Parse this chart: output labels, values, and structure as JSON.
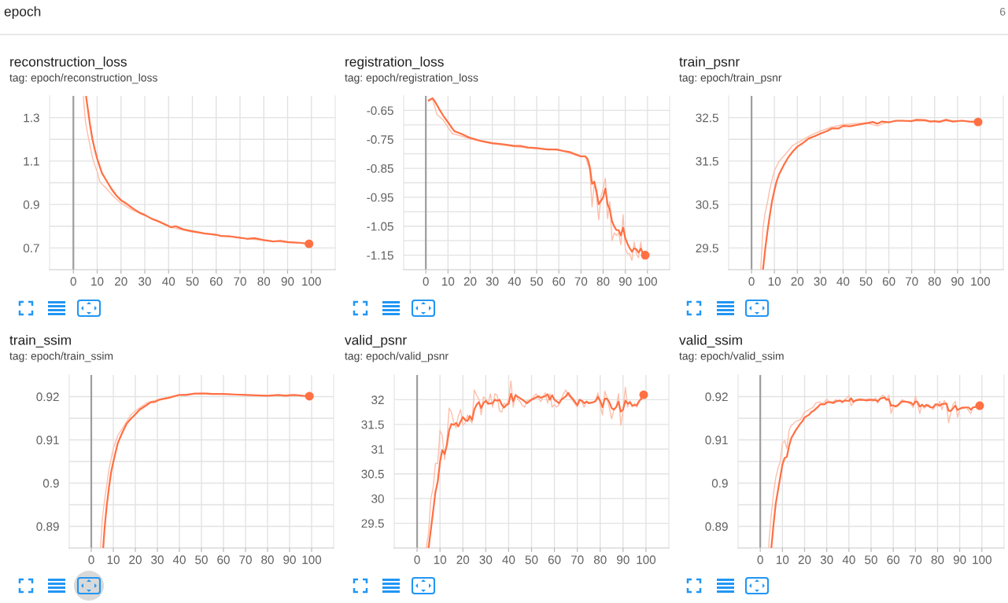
{
  "chart_data": [
    {
      "type": "line",
      "title": "reconstruction_loss",
      "subtitle": "tag: epoch/reconstruction_loss",
      "annotations": [
        "epoch",
        "6"
      ],
      "xlim": [
        -10,
        110
      ],
      "xticks": [
        0,
        10,
        20,
        30,
        40,
        50,
        60,
        70,
        80,
        90,
        100
      ],
      "ylim": [
        0.6,
        1.4
      ],
      "yticks": [
        0.7,
        {
          "value": 0.8,
          "label": null
        },
        0.9,
        {
          "value": 1.0,
          "label": null
        },
        1.1,
        {
          "value": 1.2,
          "label": null
        },
        1.3
      ],
      "grid": true,
      "ref_lines": [
        {
          "axis": "x",
          "value": 0,
          "color": "#9e9e9e"
        }
      ],
      "series": [
        {
          "color": "#fcbfac",
          "x": [
            4.2,
            5,
            6,
            7,
            8,
            9,
            10,
            11,
            12,
            13,
            15,
            17,
            20,
            25,
            30,
            40,
            50,
            60,
            70,
            80,
            90,
            99
          ],
          "values": [
            1.4,
            1.286,
            1.225,
            1.171,
            1.117,
            1.081,
            1.051,
            1.008,
            0.994,
            0.984,
            0.96,
            0.936,
            0.906,
            0.873,
            0.849,
            0.798,
            0.773,
            0.759,
            0.746,
            0.735,
            0.725,
            0.72
          ]
        },
        {
          "color": "#ff7043",
          "x": [
            5.3,
            6,
            7,
            8,
            9,
            10,
            12,
            14,
            16,
            18,
            20,
            22,
            25,
            28,
            30,
            33,
            36,
            40,
            41,
            43,
            46,
            50,
            55,
            60,
            62,
            66,
            70,
            73,
            76,
            80,
            84,
            87,
            90,
            95,
            99
          ],
          "values": [
            1.4,
            1.346,
            1.267,
            1.201,
            1.153,
            1.111,
            1.045,
            1.008,
            0.972,
            0.942,
            0.92,
            0.906,
            0.882,
            0.861,
            0.852,
            0.834,
            0.822,
            0.801,
            0.795,
            0.8,
            0.786,
            0.777,
            0.767,
            0.761,
            0.755,
            0.753,
            0.747,
            0.742,
            0.745,
            0.736,
            0.73,
            0.733,
            0.727,
            0.724,
            0.719
          ]
        },
        {
          "type": "scatter",
          "marker": "circle",
          "color": "#ff7043",
          "x": [
            99
          ],
          "values": [
            0.719
          ]
        }
      ]
    },
    {
      "type": "line",
      "title": "registration_loss",
      "subtitle": "tag: epoch/registration_loss",
      "xlim": [
        -10,
        110
      ],
      "xticks": [
        0,
        10,
        20,
        30,
        40,
        50,
        60,
        70,
        80,
        90,
        100
      ],
      "ylim": [
        -1.2,
        -0.6
      ],
      "yticks": [
        -1.15,
        {
          "value": -1.1,
          "label": null
        },
        -1.05,
        {
          "value": -1.0,
          "label": null
        },
        -0.95,
        {
          "value": -0.9,
          "label": null
        },
        -0.85,
        {
          "value": -0.8,
          "label": null
        },
        -0.75,
        {
          "value": -0.7,
          "label": null
        },
        -0.65
      ],
      "grid": true,
      "ref_lines": [
        {
          "axis": "x",
          "value": 0,
          "color": "#9e9e9e"
        }
      ],
      "series": [
        {
          "color": "#fcbfac",
          "x": [
            1,
            3,
            5,
            8,
            12,
            13,
            20,
            30,
            40,
            50,
            60,
            70,
            72,
            74,
            75,
            76,
            77,
            78,
            79,
            80,
            81,
            82,
            83,
            84,
            85,
            86,
            87,
            88,
            89,
            90,
            91,
            92,
            93,
            94,
            95,
            96,
            97,
            98,
            99
          ],
          "values": [
            -0.62,
            -0.61,
            -0.664,
            -0.685,
            -0.731,
            -0.732,
            -0.748,
            -0.765,
            -0.775,
            -0.782,
            -0.787,
            -0.81,
            -0.81,
            -0.857,
            -0.983,
            -0.902,
            -0.947,
            -1.028,
            -0.947,
            -0.92,
            -0.884,
            -1.024,
            -0.965,
            -1.1,
            -1.073,
            -1.082,
            -1.073,
            -1.114,
            -1.01,
            -1.127,
            -1.145,
            -1.145,
            -1.168,
            -1.105,
            -1.145,
            -1.159,
            -1.105,
            -1.164,
            -1.159
          ]
        },
        {
          "color": "#ff7043",
          "x": [
            1,
            2,
            3,
            4,
            6,
            8,
            10,
            12,
            13,
            16,
            20,
            25,
            30,
            35,
            40,
            43,
            46,
            50,
            55,
            59,
            62,
            65,
            68,
            70,
            72,
            73,
            74,
            75,
            76,
            77,
            78,
            79,
            80,
            81,
            82,
            83,
            84,
            85,
            86,
            87,
            88,
            89,
            90,
            91,
            92,
            93,
            94,
            95,
            96,
            97,
            98,
            99
          ],
          "values": [
            -0.617,
            -0.612,
            -0.608,
            -0.618,
            -0.645,
            -0.67,
            -0.691,
            -0.713,
            -0.722,
            -0.731,
            -0.745,
            -0.756,
            -0.763,
            -0.767,
            -0.773,
            -0.773,
            -0.778,
            -0.78,
            -0.785,
            -0.785,
            -0.79,
            -0.794,
            -0.803,
            -0.809,
            -0.809,
            -0.818,
            -0.846,
            -0.904,
            -0.896,
            -0.929,
            -0.974,
            -0.963,
            -0.95,
            -0.92,
            -0.974,
            -0.992,
            -1.033,
            -1.051,
            -1.063,
            -1.064,
            -1.082,
            -1.055,
            -1.091,
            -1.111,
            -1.126,
            -1.138,
            -1.126,
            -1.13,
            -1.141,
            -1.127,
            -1.145,
            -1.15
          ]
        },
        {
          "type": "scatter",
          "marker": "circle",
          "color": "#ff7043",
          "x": [
            99
          ],
          "values": [
            -1.15
          ]
        }
      ]
    },
    {
      "type": "line",
      "title": "train_psnr",
      "subtitle": "tag: epoch/train_psnr",
      "xlim": [
        -10,
        110
      ],
      "xticks": [
        0,
        10,
        20,
        30,
        40,
        50,
        60,
        70,
        80,
        90,
        100
      ],
      "ylim": [
        29,
        33
      ],
      "yticks": [
        29.5,
        {
          "value": 30,
          "label": null
        },
        30.5,
        {
          "value": 31,
          "label": null
        },
        31.5,
        {
          "value": 32,
          "label": null
        },
        32.5
      ],
      "grid": true,
      "ref_lines": [
        {
          "axis": "x",
          "value": 0,
          "color": "#9e9e9e"
        }
      ],
      "series": [
        {
          "color": "#fcbfac",
          "x": [
            4,
            5,
            6,
            7,
            8,
            10,
            12,
            15,
            18,
            20,
            25,
            30,
            35,
            40,
            50,
            55,
            60,
            70,
            80,
            90,
            99
          ],
          "values": [
            29.0,
            29.96,
            30.32,
            30.56,
            30.86,
            31.28,
            31.49,
            31.67,
            31.86,
            31.92,
            32.07,
            32.19,
            32.28,
            32.34,
            32.38,
            32.31,
            32.41,
            32.43,
            32.42,
            32.43,
            32.41
          ]
        },
        {
          "color": "#ff7043",
          "x": [
            5,
            6,
            7,
            8,
            9,
            10,
            11,
            12,
            14,
            16,
            18,
            20,
            22,
            25,
            28,
            30,
            33,
            35,
            38,
            40,
            43,
            46,
            50,
            53,
            55,
            57,
            60,
            63,
            66,
            70,
            72,
            76,
            78,
            80,
            82,
            85,
            88,
            92,
            95,
            99
          ],
          "values": [
            29.0,
            29.48,
            29.9,
            30.26,
            30.59,
            30.83,
            31.04,
            31.19,
            31.4,
            31.58,
            31.72,
            31.83,
            31.9,
            32.02,
            32.08,
            32.13,
            32.19,
            32.25,
            32.25,
            32.31,
            32.3,
            32.33,
            32.37,
            32.4,
            32.36,
            32.41,
            32.39,
            32.43,
            32.43,
            32.42,
            32.45,
            32.44,
            32.41,
            32.42,
            32.4,
            32.45,
            32.41,
            32.43,
            32.41,
            32.4
          ]
        },
        {
          "type": "scatter",
          "marker": "circle",
          "color": "#ff7043",
          "x": [
            99
          ],
          "values": [
            32.4
          ]
        }
      ]
    },
    {
      "type": "line",
      "title": "train_ssim",
      "subtitle": "tag: epoch/train_ssim",
      "xlim": [
        -10,
        110
      ],
      "xticks": [
        0,
        10,
        20,
        30,
        40,
        50,
        60,
        70,
        80,
        90,
        100
      ],
      "ylim": [
        0.885,
        0.925
      ],
      "yticks": [
        0.89,
        {
          "value": 0.895,
          "label": null
        },
        0.9,
        {
          "value": 0.905,
          "label": null
        },
        0.91,
        {
          "value": 0.915,
          "label": null
        },
        0.92
      ],
      "grid": true,
      "ref_lines": [
        {
          "axis": "x",
          "value": 0,
          "color": "#9e9e9e"
        }
      ],
      "series": [
        {
          "color": "#fcbfac",
          "x": [
            4.2,
            5,
            6,
            7,
            8,
            10,
            12,
            15,
            18,
            20,
            25,
            30,
            40,
            50,
            60,
            70,
            80,
            90,
            99
          ],
          "values": [
            0.885,
            0.8917,
            0.8959,
            0.8995,
            0.9031,
            0.908,
            0.911,
            0.9134,
            0.9158,
            0.9167,
            0.9185,
            0.9193,
            0.9204,
            0.9208,
            0.9206,
            0.9204,
            0.9202,
            0.9204,
            0.9201
          ]
        },
        {
          "color": "#ff7043",
          "x": [
            5.4,
            6,
            7,
            8,
            9,
            10,
            12,
            14,
            16,
            18,
            20,
            22,
            25,
            27,
            29,
            31,
            35,
            40,
            43,
            47,
            52,
            55,
            60,
            65,
            70,
            75,
            80,
            85,
            88,
            92,
            96,
            99
          ],
          "values": [
            0.885,
            0.8893,
            0.8947,
            0.8989,
            0.9025,
            0.9049,
            0.9092,
            0.9116,
            0.9137,
            0.9149,
            0.9159,
            0.917,
            0.918,
            0.9187,
            0.9188,
            0.9193,
            0.9197,
            0.9204,
            0.9204,
            0.9207,
            0.9207,
            0.9206,
            0.9206,
            0.9205,
            0.9204,
            0.9203,
            0.9202,
            0.9204,
            0.9202,
            0.9204,
            0.9202,
            0.9201
          ]
        },
        {
          "type": "scatter",
          "marker": "circle",
          "color": "#ff7043",
          "x": [
            99
          ],
          "values": [
            0.9201
          ]
        }
      ]
    },
    {
      "type": "line",
      "title": "valid_psnr",
      "subtitle": "tag: epoch/valid_psnr",
      "xlim": [
        -10,
        110
      ],
      "xticks": [
        0,
        10,
        20,
        30,
        40,
        50,
        60,
        70,
        80,
        90,
        100
      ],
      "ylim": [
        29,
        32.5
      ],
      "yticks": [
        29.5,
        30,
        30.5,
        31,
        31.5,
        32
      ],
      "grid": true,
      "ref_lines": [
        {
          "axis": "x",
          "value": 0,
          "color": "#9e9e9e"
        }
      ],
      "series": [
        {
          "color": "#fcbfac",
          "x": [
            4,
            5,
            6,
            7,
            8,
            9,
            10,
            11,
            12,
            13,
            14,
            15,
            16,
            17,
            18,
            19,
            20,
            21,
            22,
            23,
            24,
            25,
            26,
            27,
            28,
            29,
            30,
            31,
            32,
            33,
            34,
            35,
            36,
            37,
            38,
            39,
            40,
            41,
            42,
            43,
            44,
            45,
            46,
            47,
            48,
            50,
            52,
            54,
            56,
            57,
            58,
            59,
            60,
            61,
            62,
            64,
            65,
            66,
            67,
            68,
            70,
            71,
            72,
            73,
            74,
            76,
            78,
            79,
            80,
            81,
            82,
            83,
            84,
            85,
            86,
            87,
            88,
            89,
            90,
            91,
            92,
            93,
            94,
            95,
            96,
            97,
            98,
            99
          ],
          "values": [
            29.0,
            29.3,
            30.0,
            30.21,
            30.71,
            30.71,
            31.38,
            31.27,
            30.79,
            31.16,
            31.83,
            31.75,
            31.53,
            31.43,
            31.67,
            31.8,
            31.48,
            31.53,
            31.69,
            31.59,
            31.53,
            32.2,
            32.09,
            32.01,
            31.69,
            32.06,
            32.01,
            31.9,
            32.12,
            31.85,
            32.12,
            32.09,
            31.77,
            31.75,
            31.93,
            31.9,
            32.01,
            32.38,
            31.85,
            32.12,
            32.01,
            31.96,
            31.88,
            31.85,
            31.98,
            32.01,
            32.12,
            31.96,
            32.14,
            31.93,
            32.12,
            31.85,
            31.9,
            31.85,
            31.9,
            32.12,
            32.2,
            32.09,
            32.04,
            31.98,
            31.85,
            31.98,
            31.96,
            31.85,
            31.97,
            31.93,
            31.98,
            32.14,
            31.88,
            31.69,
            32.17,
            32.04,
            31.83,
            31.61,
            31.8,
            31.85,
            32.12,
            31.48,
            31.8,
            32.25,
            31.85,
            31.98,
            31.85,
            31.93,
            31.85,
            31.96,
            32.06,
            32.18
          ]
        },
        {
          "color": "#ff7043",
          "x": [
            5,
            6,
            7,
            8,
            9,
            10,
            11,
            12,
            13,
            14,
            15,
            16,
            17,
            18,
            19,
            20,
            21,
            22,
            23,
            24,
            25,
            26,
            27,
            28,
            29,
            30,
            31,
            33,
            34,
            35,
            36,
            37,
            38,
            39,
            40,
            41,
            42,
            43,
            44,
            46,
            48,
            50,
            53,
            54,
            55,
            56,
            57,
            58,
            59,
            60,
            62,
            63,
            65,
            66,
            67,
            68,
            70,
            71,
            72,
            73,
            74,
            75,
            77,
            78,
            79,
            80,
            81,
            82,
            83,
            84,
            85,
            86,
            87,
            88,
            89,
            90,
            91,
            92,
            93,
            94,
            95,
            96,
            97,
            98,
            99
          ],
          "values": [
            29.0,
            29.37,
            29.74,
            30.13,
            30.34,
            30.74,
            30.98,
            30.9,
            31.08,
            31.38,
            31.51,
            31.49,
            31.53,
            31.46,
            31.56,
            31.65,
            31.59,
            31.57,
            31.67,
            31.59,
            31.8,
            31.9,
            31.95,
            31.83,
            31.93,
            31.98,
            31.92,
            31.93,
            32.0,
            31.98,
            32.0,
            31.9,
            31.84,
            31.89,
            31.92,
            32.12,
            31.97,
            32.09,
            32.06,
            32.0,
            31.93,
            32.0,
            32.07,
            32.04,
            32.06,
            32.07,
            32.11,
            32.0,
            32.09,
            32.0,
            31.93,
            32.0,
            32.07,
            32.14,
            32.07,
            32.02,
            31.89,
            32.0,
            31.98,
            31.93,
            31.96,
            31.93,
            31.95,
            31.97,
            32.06,
            31.98,
            31.85,
            32.02,
            32.02,
            31.95,
            31.83,
            31.8,
            31.85,
            31.96,
            31.76,
            31.8,
            31.98,
            31.92,
            31.95,
            31.88,
            31.89,
            31.89,
            31.97,
            32.02,
            32.1
          ]
        },
        {
          "type": "scatter",
          "marker": "circle",
          "color": "#ff7043",
          "x": [
            99
          ],
          "values": [
            32.1
          ]
        }
      ]
    },
    {
      "type": "line",
      "title": "valid_ssim",
      "subtitle": "tag: epoch/valid_ssim",
      "xlim": [
        -10,
        110
      ],
      "xticks": [
        0,
        10,
        20,
        30,
        40,
        50,
        60,
        70,
        80,
        90,
        100
      ],
      "ylim": [
        0.885,
        0.925
      ],
      "yticks": [
        0.89,
        {
          "value": 0.895,
          "label": null
        },
        0.9,
        {
          "value": 0.905,
          "label": null
        },
        0.91,
        {
          "value": 0.915,
          "label": null
        },
        0.92
      ],
      "grid": true,
      "ref_lines": [
        {
          "axis": "x",
          "value": 0,
          "color": "#9e9e9e"
        }
      ],
      "series": [
        {
          "color": "#fcbfac",
          "x": [
            3.8,
            4,
            5,
            6,
            7,
            8,
            9,
            10,
            11,
            12,
            13,
            14,
            15,
            16,
            18,
            19,
            20,
            22,
            24,
            25,
            27,
            28,
            30,
            32,
            34,
            36,
            38,
            40,
            41,
            43,
            45,
            47,
            49,
            51,
            52,
            53,
            55,
            56,
            57,
            58,
            59,
            60,
            62,
            64,
            66,
            68,
            69,
            70,
            71,
            72,
            73,
            74,
            76,
            78,
            79,
            80,
            81,
            82,
            83,
            84,
            85,
            86,
            87,
            88,
            89,
            90,
            91,
            93,
            95,
            96,
            97,
            99
          ],
          "values": [
            0.885,
            0.8869,
            0.8929,
            0.8977,
            0.9013,
            0.9034,
            0.9049,
            0.9092,
            0.9098,
            0.908,
            0.9122,
            0.9134,
            0.9137,
            0.9143,
            0.9146,
            0.9155,
            0.9164,
            0.917,
            0.9176,
            0.9185,
            0.9188,
            0.9183,
            0.9194,
            0.9185,
            0.9193,
            0.9189,
            0.9191,
            0.9203,
            0.9179,
            0.9193,
            0.9195,
            0.9193,
            0.9195,
            0.9189,
            0.9197,
            0.9185,
            0.9203,
            0.9201,
            0.9191,
            0.9203,
            0.9161,
            0.9176,
            0.9182,
            0.9193,
            0.9188,
            0.9182,
            0.9175,
            0.9201,
            0.9182,
            0.9161,
            0.9183,
            0.9173,
            0.9182,
            0.917,
            0.9181,
            0.9176,
            0.9189,
            0.917,
            0.9191,
            0.9182,
            0.914,
            0.9164,
            0.9182,
            0.9189,
            0.9152,
            0.917,
            0.9176,
            0.9175,
            0.9161,
            0.9176,
            0.9176,
            0.9182
          ]
        },
        {
          "color": "#ff7043",
          "x": [
            5,
            6,
            7,
            8,
            9,
            10,
            11,
            12,
            13,
            14,
            16,
            18,
            19,
            20,
            22,
            23,
            24,
            26,
            27,
            29,
            30,
            32,
            33,
            34,
            36,
            37,
            38,
            40,
            41,
            42,
            43,
            45,
            47,
            48,
            50,
            52,
            53,
            54,
            56,
            57,
            58,
            59,
            60,
            61,
            62,
            64,
            66,
            68,
            69,
            70,
            71,
            72,
            73,
            74,
            75,
            77,
            78,
            79,
            80,
            81,
            82,
            84,
            85,
            86,
            87,
            88,
            89,
            90,
            91,
            93,
            94,
            95,
            96,
            97,
            98,
            99
          ],
          "values": [
            0.885,
            0.8905,
            0.8953,
            0.8983,
            0.9013,
            0.9043,
            0.9058,
            0.9061,
            0.9086,
            0.9104,
            0.9122,
            0.9137,
            0.9143,
            0.9152,
            0.9158,
            0.9164,
            0.9167,
            0.9176,
            0.9182,
            0.9182,
            0.9187,
            0.9187,
            0.9185,
            0.9189,
            0.9191,
            0.9187,
            0.9191,
            0.919,
            0.9196,
            0.9188,
            0.9191,
            0.9193,
            0.9192,
            0.9191,
            0.9193,
            0.9192,
            0.9189,
            0.9195,
            0.9198,
            0.9193,
            0.9194,
            0.9179,
            0.918,
            0.9177,
            0.9179,
            0.9189,
            0.9188,
            0.9186,
            0.9181,
            0.9189,
            0.9187,
            0.9177,
            0.9181,
            0.9177,
            0.9181,
            0.9175,
            0.9175,
            0.9182,
            0.9182,
            0.9179,
            0.9183,
            0.9184,
            0.9167,
            0.9167,
            0.9173,
            0.9179,
            0.9169,
            0.9172,
            0.9174,
            0.9175,
            0.9175,
            0.917,
            0.9175,
            0.9176,
            0.9177,
            0.9179
          ]
        },
        {
          "type": "scatter",
          "marker": "circle",
          "color": "#ff7043",
          "x": [
            99
          ],
          "values": [
            0.9179
          ]
        }
      ]
    }
  ]
}
